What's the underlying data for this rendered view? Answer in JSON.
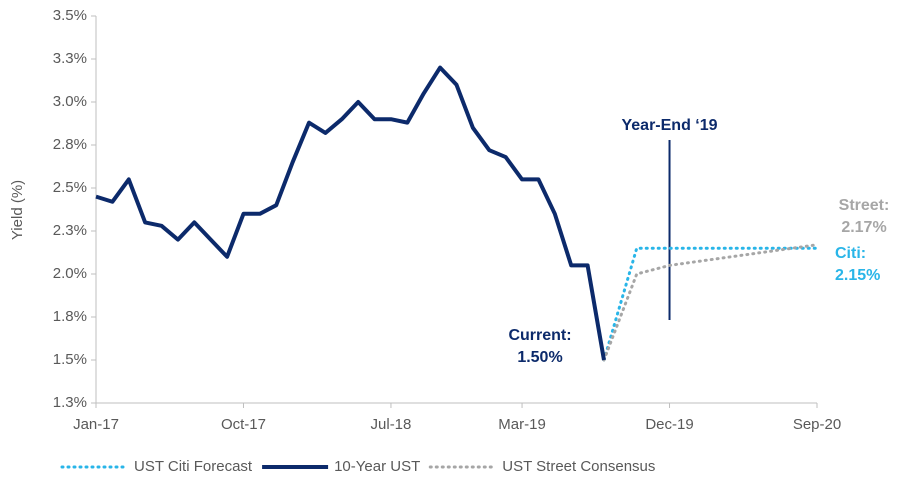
{
  "chart_data": {
    "type": "line",
    "y_label": "Yield (%)",
    "ylim": [
      1.25,
      3.5
    ],
    "yticks": [
      {
        "value": 1.25,
        "label": "1.3%"
      },
      {
        "value": 1.5,
        "label": "1.5%"
      },
      {
        "value": 1.75,
        "label": "1.8%"
      },
      {
        "value": 2.0,
        "label": "2.0%"
      },
      {
        "value": 2.25,
        "label": "2.3%"
      },
      {
        "value": 2.5,
        "label": "2.5%"
      },
      {
        "value": 2.75,
        "label": "2.8%"
      },
      {
        "value": 3.0,
        "label": "3.0%"
      },
      {
        "value": 3.25,
        "label": "3.3%"
      },
      {
        "value": 3.5,
        "label": "3.5%"
      }
    ],
    "xlim": [
      "2017-01",
      "2020-09"
    ],
    "xticks": [
      {
        "value": "2017-01",
        "label": "Jan-17"
      },
      {
        "value": "2017-10",
        "label": "Oct-17"
      },
      {
        "value": "2018-07",
        "label": "Jul-18"
      },
      {
        "value": "2019-03",
        "label": "Mar-19"
      },
      {
        "value": "2019-12",
        "label": "Dec-19"
      },
      {
        "value": "2020-09",
        "label": "Sep-20"
      }
    ],
    "series": [
      {
        "name": "UST Citi Forecast",
        "color": "#29b5e8",
        "style": "dotted",
        "x": [
          "2019-08",
          "2019-10",
          "2020-09"
        ],
        "values": [
          1.5,
          2.15,
          2.15
        ]
      },
      {
        "name": "10-Year UST",
        "color": "#0c2a6b",
        "style": "solid",
        "x": [
          "2017-01",
          "2017-02",
          "2017-03",
          "2017-04",
          "2017-05",
          "2017-06",
          "2017-07",
          "2017-08",
          "2017-09",
          "2017-10",
          "2017-11",
          "2017-12",
          "2018-01",
          "2018-02",
          "2018-03",
          "2018-04",
          "2018-05",
          "2018-06",
          "2018-07",
          "2018-08",
          "2018-09",
          "2018-10",
          "2018-11",
          "2018-12",
          "2019-01",
          "2019-02",
          "2019-03",
          "2019-04",
          "2019-05",
          "2019-06",
          "2019-07",
          "2019-08"
        ],
        "values": [
          2.45,
          2.42,
          2.55,
          2.3,
          2.28,
          2.2,
          2.3,
          2.2,
          2.1,
          2.35,
          2.35,
          2.4,
          2.65,
          2.88,
          2.82,
          2.9,
          3.0,
          2.9,
          2.9,
          2.88,
          3.05,
          3.2,
          3.1,
          2.85,
          2.72,
          2.68,
          2.55,
          2.55,
          2.35,
          2.05,
          2.05,
          1.5
        ]
      },
      {
        "name": "UST Street Consensus",
        "color": "#a6a6a6",
        "style": "dotted",
        "x": [
          "2019-08",
          "2019-10",
          "2019-12",
          "2020-09"
        ],
        "values": [
          1.5,
          2.0,
          2.05,
          2.17
        ]
      }
    ],
    "marker": {
      "x": "2019-12",
      "label": "Year-End ‘19"
    },
    "annotations": [
      {
        "lines": [
          "Current:",
          "1.50%"
        ],
        "color": "#0c2a6b"
      },
      {
        "lines": [
          "Street:",
          "2.17%"
        ],
        "color": "#a6a6a6"
      },
      {
        "lines": [
          "Citi:",
          "2.15%"
        ],
        "color": "#29b5e8"
      }
    ]
  }
}
